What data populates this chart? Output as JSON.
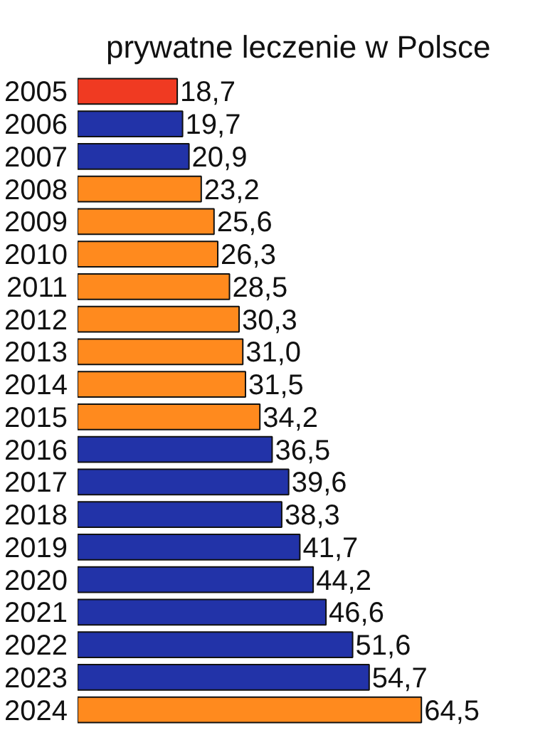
{
  "chart_data": {
    "type": "bar",
    "orientation": "horizontal",
    "title": "prywatne leczenie w Polsce",
    "categories": [
      "2005",
      "2006",
      "2007",
      "2008",
      "2009",
      "2010",
      "2011",
      "2012",
      "2013",
      "2014",
      "2015",
      "2016",
      "2017",
      "2018",
      "2019",
      "2020",
      "2021",
      "2022",
      "2023",
      "2024"
    ],
    "values": [
      18.7,
      19.7,
      20.9,
      23.2,
      25.6,
      26.3,
      28.5,
      30.3,
      31.0,
      31.5,
      34.2,
      36.5,
      39.6,
      38.3,
      41.7,
      44.2,
      46.6,
      51.6,
      54.7,
      64.5
    ],
    "value_labels": [
      "18,7",
      "19,7",
      "20,9",
      "23,2",
      "25,6",
      "26,3",
      "28,5",
      "30,3",
      "31,0",
      "31,5",
      "34,2",
      "36,5",
      "39,6",
      "38,3",
      "41,7",
      "44,2",
      "46,6",
      "51,6",
      "54,7",
      "64,5"
    ],
    "colors": [
      "#f03a22",
      "#2233a8",
      "#2233a8",
      "#ff8a1e",
      "#ff8a1e",
      "#ff8a1e",
      "#ff8a1e",
      "#ff8a1e",
      "#ff8a1e",
      "#ff8a1e",
      "#ff8a1e",
      "#2233a8",
      "#2233a8",
      "#2233a8",
      "#2233a8",
      "#2233a8",
      "#2233a8",
      "#2233a8",
      "#2233a8",
      "#ff8a1e"
    ]
  }
}
